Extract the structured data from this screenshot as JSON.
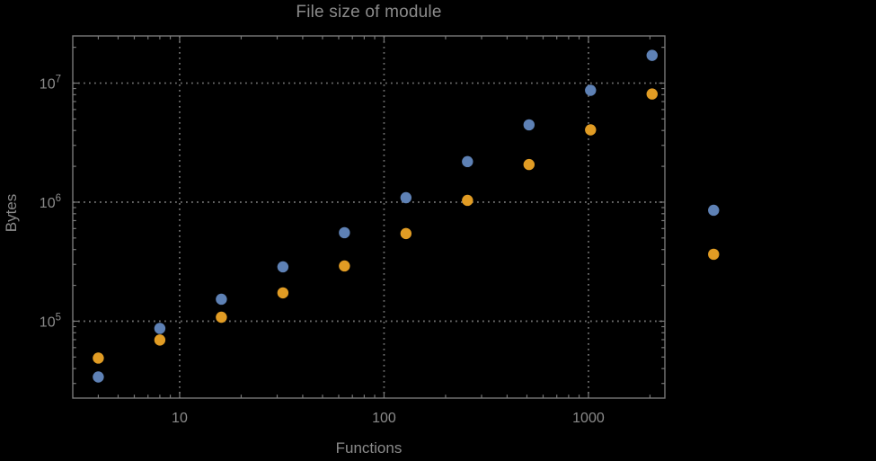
{
  "page": {
    "background_color": "#000000"
  },
  "chart_data": {
    "type": "scatter",
    "title": "File size of module",
    "xlabel": "Functions",
    "ylabel": "Bytes",
    "x_scale": "log",
    "y_scale": "log",
    "xlim": [
      3.0,
      2365
    ],
    "ylim": [
      22600,
      24900000
    ],
    "grid": {
      "style": "dotted",
      "x_values": [
        10,
        100,
        1000
      ],
      "y_values": [
        100000,
        1000000,
        10000000
      ]
    },
    "x_major_ticks": [
      10,
      100,
      1000
    ],
    "x_tick_labels": [
      "10",
      "100",
      "1000"
    ],
    "y_major_ticks": [
      100000,
      1000000,
      10000000
    ],
    "y_tick_mantissa": "10",
    "y_tick_exponents": [
      5,
      6,
      7
    ],
    "legend_position": "none",
    "series": [
      {
        "name": "blue-series",
        "color": "#5E81B5",
        "x": [
          4,
          8,
          16,
          32,
          64,
          128,
          256,
          512,
          1024,
          2048,
          4096
        ],
        "y": [
          34000,
          87000,
          153000,
          286000,
          554000,
          1090000,
          2190000,
          4460000,
          8700000,
          17100000,
          855000
        ]
      },
      {
        "name": "orange-series",
        "color": "#E19C24",
        "x": [
          4,
          8,
          16,
          32,
          64,
          128,
          256,
          512,
          1024,
          2048,
          4096
        ],
        "y": [
          49000,
          69500,
          108000,
          173000,
          291000,
          545000,
          1035000,
          2070000,
          4050000,
          8100000,
          365000
        ]
      }
    ],
    "styles": {
      "text_color": "#8B8B8B",
      "frame_color": "#787878",
      "grid_color": "#6E6E6E",
      "tick_color": "#787878",
      "point_radius": 6.2
    }
  }
}
